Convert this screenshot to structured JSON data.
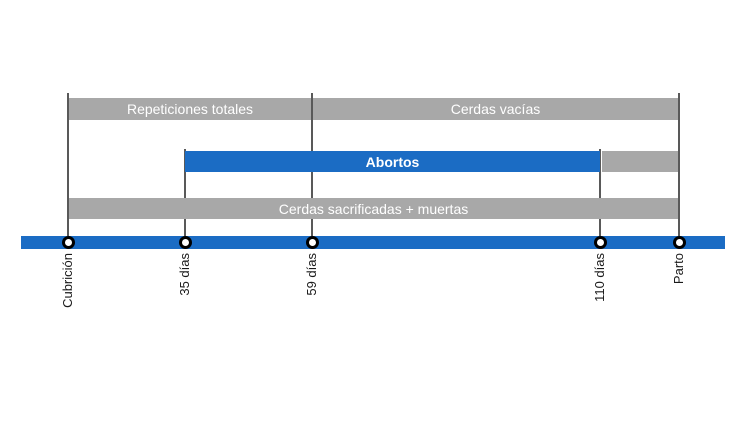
{
  "diagram": {
    "colors": {
      "blue": "#1b6cc4",
      "gray": "#a8a8a8",
      "tick_line": "#595959",
      "marker_fill": "#ffffff",
      "marker_stroke": "#000000",
      "bar_text": "#ffffff",
      "axis_label_text": "#1a1a1a",
      "background": "#ffffff"
    },
    "bars": [
      {
        "label": "Repeticiones totales",
        "from": "Cubrición",
        "to": "59 días",
        "style": "gray"
      },
      {
        "label": "Cerdas vacías",
        "from": "59 días",
        "to": "Parto",
        "style": "gray"
      },
      {
        "label": "Abortos",
        "from": "35 días",
        "to": "110 días",
        "style": "blue"
      },
      {
        "label": "",
        "from": "110 días",
        "to": "Parto",
        "style": "gray"
      },
      {
        "label": "Cerdas sacrificadas + muertas",
        "from": "Cubrición",
        "to": "Parto",
        "style": "gray"
      }
    ],
    "timeline": {
      "points": [
        {
          "label": "Cubrición"
        },
        {
          "label": "35 días"
        },
        {
          "label": "59 días"
        },
        {
          "label": "110 días"
        },
        {
          "label": "Parto"
        }
      ]
    }
  }
}
